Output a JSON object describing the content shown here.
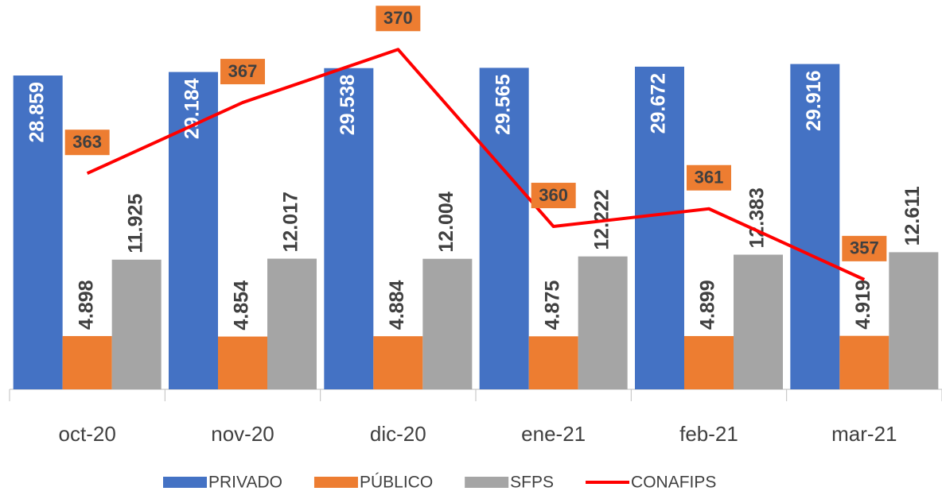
{
  "chart_data": {
    "type": "bar",
    "categories": [
      "oct-20",
      "nov-20",
      "dic-20",
      "ene-21",
      "feb-21",
      "mar-21"
    ],
    "series": [
      {
        "name": "PRIVADO",
        "color": "#4472C4",
        "values": [
          28859,
          29184,
          29538,
          29565,
          29672,
          29916
        ],
        "value_labels": [
          "28.859",
          "29.184",
          "29.538",
          "29.565",
          "29.672",
          "29.916"
        ]
      },
      {
        "name": "PÚBLICO",
        "color": "#ED7D31",
        "values": [
          4898,
          4854,
          4884,
          4875,
          4899,
          4919
        ],
        "value_labels": [
          "4.898",
          "4.854",
          "4.884",
          "4.875",
          "4.899",
          "4.919"
        ]
      },
      {
        "name": "SFPS",
        "color": "#A5A5A5",
        "values": [
          11925,
          12017,
          12004,
          12222,
          12383,
          12611
        ],
        "value_labels": [
          "11.925",
          "12.017",
          "12.004",
          "12.222",
          "12.383",
          "12.611"
        ]
      },
      {
        "name": "CONAFIPS",
        "color": "#FF0000",
        "type": "line",
        "axis": "y2",
        "values": [
          363,
          367,
          370,
          360,
          361,
          357
        ]
      }
    ],
    "ylim": [
      0,
      35000
    ],
    "y2lim": [
      350.8,
      372.3
    ]
  }
}
